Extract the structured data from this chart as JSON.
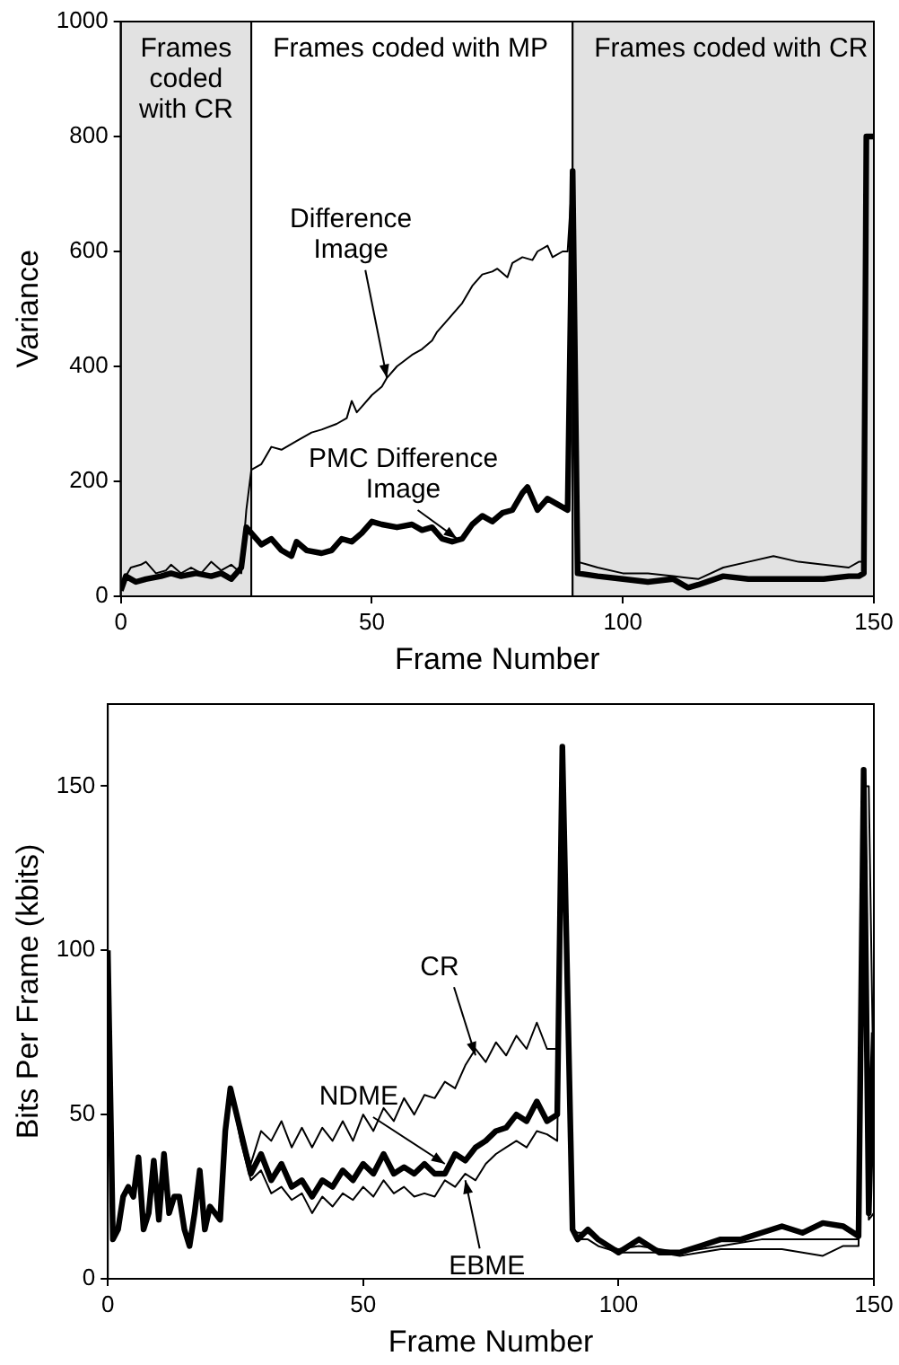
{
  "chart_data": [
    {
      "type": "line",
      "xlabel": "Frame Number",
      "ylabel": "Variance",
      "xlim": [
        0,
        150
      ],
      "xticks": [
        0,
        50,
        100,
        150
      ],
      "ylim": [
        0,
        1000
      ],
      "yticks": [
        0,
        200,
        400,
        600,
        800,
        1000
      ],
      "bands": [
        {
          "axis": "x",
          "from": 0,
          "to": 26,
          "label": "Frames coded with CR",
          "color": "#e2e2e2"
        },
        {
          "axis": "x",
          "from": 26,
          "to": 90,
          "label": "Frames coded with MP",
          "color": "#ffffff"
        },
        {
          "axis": "x",
          "from": 90,
          "to": 150,
          "label": "Frames coded with CR",
          "color": "#e2e2e2"
        }
      ],
      "annotations": [
        {
          "text": "Difference Image",
          "x": 53,
          "y": 380
        },
        {
          "text": "PMC Difference Image",
          "x": 67,
          "y": 100
        }
      ],
      "series": [
        {
          "color": "#000000",
          "x": [
            0,
            2,
            4,
            5,
            7,
            9,
            10,
            12,
            14,
            16,
            18,
            20,
            22,
            24,
            25,
            26,
            28,
            30,
            32,
            35,
            38,
            40,
            43,
            45,
            46,
            47,
            48,
            50,
            52,
            53,
            55,
            58,
            60,
            62,
            63,
            65,
            68,
            70,
            72,
            74,
            75,
            77,
            78,
            80,
            82,
            83,
            85,
            86,
            88,
            89,
            90,
            91,
            93,
            95,
            100,
            105,
            110,
            115,
            120,
            125,
            130,
            135,
            140,
            145,
            147,
            148,
            148.5,
            150
          ],
          "values": [
            20,
            50,
            55,
            60,
            40,
            45,
            55,
            40,
            50,
            40,
            60,
            45,
            55,
            40,
            150,
            220,
            230,
            260,
            255,
            270,
            285,
            290,
            300,
            310,
            340,
            320,
            330,
            350,
            365,
            380,
            400,
            420,
            430,
            445,
            460,
            480,
            510,
            540,
            560,
            565,
            570,
            555,
            580,
            590,
            585,
            600,
            610,
            590,
            600,
            600,
            740,
            60,
            55,
            50,
            40,
            40,
            35,
            30,
            50,
            60,
            70,
            60,
            55,
            50,
            60,
            60,
            800,
            800
          ]
        },
        {
          "color": "#000000",
          "x": [
            0,
            1,
            3,
            5,
            8,
            10,
            12,
            15,
            18,
            20,
            22,
            24,
            25,
            26,
            28,
            30,
            32,
            34,
            35,
            37,
            40,
            42,
            44,
            46,
            48,
            50,
            52,
            55,
            58,
            60,
            62,
            64,
            66,
            68,
            70,
            72,
            74,
            76,
            78,
            80,
            81,
            83,
            85,
            87,
            89,
            90,
            91,
            95,
            100,
            105,
            110,
            113,
            115,
            120,
            125,
            130,
            135,
            140,
            145,
            147,
            148,
            148.5,
            150
          ],
          "values": [
            10,
            35,
            25,
            30,
            35,
            40,
            35,
            40,
            35,
            40,
            30,
            50,
            120,
            110,
            90,
            100,
            80,
            70,
            95,
            80,
            75,
            80,
            100,
            95,
            110,
            130,
            125,
            120,
            125,
            115,
            120,
            100,
            95,
            100,
            125,
            140,
            130,
            145,
            150,
            180,
            190,
            150,
            170,
            160,
            150,
            740,
            40,
            35,
            30,
            25,
            30,
            15,
            20,
            35,
            30,
            30,
            30,
            30,
            35,
            35,
            40,
            800,
            800
          ]
        }
      ]
    },
    {
      "type": "line",
      "xlabel": "Frame Number",
      "ylabel": "Bits Per Frame (kbits)",
      "xlim": [
        0,
        150
      ],
      "xticks": [
        0,
        50,
        100,
        150
      ],
      "ylim": [
        0,
        175
      ],
      "yticks": [
        0,
        50,
        100,
        150
      ],
      "annotations": [
        {
          "text": "CR",
          "x": 72,
          "y": 68
        },
        {
          "text": "NDME",
          "x": 66,
          "y": 35
        },
        {
          "text": "EBME",
          "x": 70,
          "y": 30
        }
      ],
      "x": [
        0,
        1,
        2,
        3,
        4,
        5,
        6,
        7,
        8,
        9,
        10,
        11,
        12,
        13,
        14,
        15,
        16,
        17,
        18,
        19,
        20,
        21,
        22,
        23,
        24,
        26,
        28,
        30,
        32,
        34,
        36,
        38,
        40,
        42,
        44,
        46,
        48,
        50,
        52,
        54,
        56,
        58,
        60,
        62,
        64,
        66,
        68,
        70,
        72,
        74,
        76,
        78,
        80,
        82,
        84,
        86,
        88,
        89,
        91,
        92,
        94,
        96,
        98,
        100,
        104,
        108,
        112,
        116,
        120,
        124,
        128,
        132,
        136,
        140,
        144,
        147,
        148,
        149,
        150
      ],
      "series": [
        {
          "color": "#000000",
          "values": [
            100,
            12,
            15,
            25,
            28,
            25,
            37,
            15,
            20,
            36,
            18,
            38,
            20,
            25,
            25,
            15,
            10,
            20,
            33,
            15,
            22,
            20,
            18,
            45,
            58,
            45,
            35,
            45,
            42,
            48,
            40,
            46,
            40,
            46,
            42,
            48,
            42,
            50,
            45,
            52,
            48,
            55,
            50,
            56,
            55,
            60,
            58,
            65,
            70,
            66,
            72,
            68,
            74,
            70,
            78,
            70,
            70,
            160,
            15,
            14,
            14,
            12,
            10,
            9,
            10,
            9,
            8,
            9,
            10,
            11,
            12,
            12,
            12,
            12,
            12,
            12,
            150,
            150,
            50
          ]
        },
        {
          "color": "#000000",
          "values": [
            100,
            12,
            15,
            25,
            28,
            25,
            37,
            15,
            20,
            36,
            18,
            38,
            20,
            25,
            25,
            15,
            10,
            20,
            33,
            15,
            22,
            20,
            18,
            45,
            58,
            45,
            32,
            38,
            30,
            35,
            28,
            30,
            25,
            30,
            28,
            33,
            30,
            35,
            32,
            38,
            32,
            34,
            32,
            35,
            32,
            32,
            38,
            36,
            40,
            42,
            45,
            46,
            50,
            48,
            54,
            48,
            50,
            162,
            15,
            12,
            15,
            12,
            10,
            8,
            12,
            8,
            8,
            10,
            12,
            12,
            14,
            16,
            14,
            17,
            16,
            13,
            155,
            20,
            75
          ]
        },
        {
          "color": "#000000",
          "values": [
            100,
            12,
            15,
            25,
            28,
            25,
            37,
            15,
            20,
            36,
            18,
            38,
            20,
            25,
            25,
            15,
            10,
            20,
            33,
            15,
            22,
            20,
            18,
            45,
            58,
            42,
            30,
            33,
            26,
            28,
            24,
            26,
            20,
            25,
            22,
            26,
            24,
            28,
            25,
            30,
            26,
            28,
            25,
            26,
            25,
            30,
            28,
            32,
            30,
            35,
            38,
            40,
            42,
            40,
            45,
            44,
            42,
            160,
            14,
            12,
            12,
            10,
            9,
            8,
            8,
            8,
            7,
            8,
            9,
            9,
            9,
            9,
            8,
            7,
            10,
            10,
            140,
            18,
            20
          ]
        }
      ]
    }
  ]
}
